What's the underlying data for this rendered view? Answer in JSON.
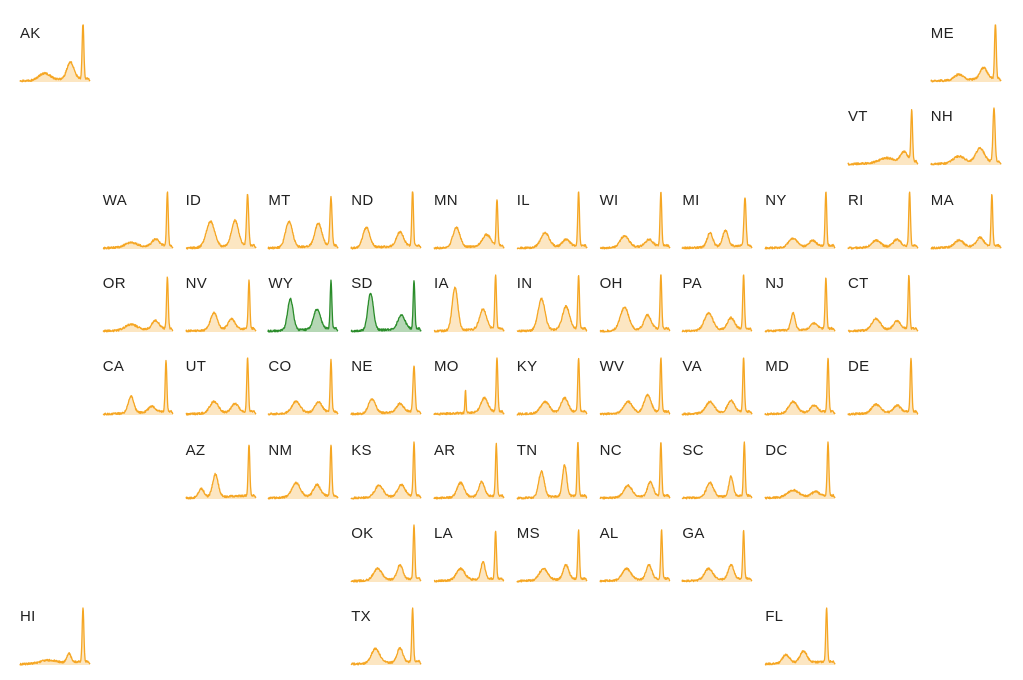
{
  "chart_data": {
    "type": "area",
    "description_of_layout": "tile-grid",
    "colors": {
      "default": "#F5A623",
      "highlight": "#2A8C2A"
    },
    "highlighted_states": [
      "WY",
      "SD"
    ],
    "states": [
      {
        "id": "AK",
        "label": "AK",
        "row": 0,
        "col": 0,
        "peaks": [
          [
            0.35,
            0.12,
            0.08
          ],
          [
            0.72,
            0.3,
            0.05
          ],
          [
            0.9,
            1.0,
            0.012
          ]
        ]
      },
      {
        "id": "ME",
        "label": "ME",
        "row": 0,
        "col": 11,
        "peaks": [
          [
            0.4,
            0.1,
            0.06
          ],
          [
            0.75,
            0.2,
            0.05
          ],
          [
            0.92,
            1.0,
            0.012
          ]
        ]
      },
      {
        "id": "VT",
        "label": "VT",
        "row": 1,
        "col": 10,
        "peaks": [
          [
            0.55,
            0.08,
            0.1
          ],
          [
            0.8,
            0.18,
            0.05
          ],
          [
            0.91,
            0.9,
            0.012
          ]
        ]
      },
      {
        "id": "NH",
        "label": "NH",
        "row": 1,
        "col": 11,
        "peaks": [
          [
            0.4,
            0.12,
            0.08
          ],
          [
            0.7,
            0.25,
            0.06
          ],
          [
            0.9,
            0.95,
            0.015
          ]
        ]
      },
      {
        "id": "WA",
        "label": "WA",
        "row": 2,
        "col": 1,
        "peaks": [
          [
            0.4,
            0.08,
            0.08
          ],
          [
            0.75,
            0.12,
            0.05
          ],
          [
            0.92,
            0.95,
            0.012
          ]
        ]
      },
      {
        "id": "ID",
        "label": "ID",
        "row": 2,
        "col": 2,
        "peaks": [
          [
            0.35,
            0.45,
            0.06
          ],
          [
            0.7,
            0.45,
            0.05
          ],
          [
            0.88,
            0.9,
            0.015
          ]
        ]
      },
      {
        "id": "MT",
        "label": "MT",
        "row": 2,
        "col": 3,
        "peaks": [
          [
            0.3,
            0.45,
            0.05
          ],
          [
            0.72,
            0.4,
            0.05
          ],
          [
            0.9,
            0.85,
            0.015
          ]
        ]
      },
      {
        "id": "ND",
        "label": "ND",
        "row": 2,
        "col": 4,
        "peaks": [
          [
            0.22,
            0.35,
            0.05
          ],
          [
            0.7,
            0.25,
            0.05
          ],
          [
            0.88,
            1.0,
            0.012
          ]
        ]
      },
      {
        "id": "MN",
        "label": "MN",
        "row": 2,
        "col": 5,
        "peaks": [
          [
            0.32,
            0.35,
            0.05
          ],
          [
            0.75,
            0.2,
            0.06
          ],
          [
            0.9,
            0.8,
            0.012
          ]
        ]
      },
      {
        "id": "IL",
        "label": "IL",
        "row": 2,
        "col": 6,
        "peaks": [
          [
            0.4,
            0.25,
            0.06
          ],
          [
            0.7,
            0.12,
            0.05
          ],
          [
            0.88,
            0.95,
            0.012
          ]
        ]
      },
      {
        "id": "WI",
        "label": "WI",
        "row": 2,
        "col": 7,
        "peaks": [
          [
            0.35,
            0.2,
            0.06
          ],
          [
            0.7,
            0.12,
            0.05
          ],
          [
            0.87,
            0.95,
            0.012
          ]
        ]
      },
      {
        "id": "MI",
        "label": "MI",
        "row": 2,
        "col": 8,
        "peaks": [
          [
            0.4,
            0.25,
            0.04
          ],
          [
            0.62,
            0.28,
            0.04
          ],
          [
            0.9,
            0.85,
            0.015
          ]
        ]
      },
      {
        "id": "NY",
        "label": "NY",
        "row": 2,
        "col": 9,
        "peaks": [
          [
            0.4,
            0.15,
            0.06
          ],
          [
            0.68,
            0.1,
            0.05
          ],
          [
            0.87,
            0.95,
            0.012
          ]
        ]
      },
      {
        "id": "RI",
        "label": "RI",
        "row": 2,
        "col": 10,
        "peaks": [
          [
            0.4,
            0.12,
            0.06
          ],
          [
            0.7,
            0.12,
            0.05
          ],
          [
            0.88,
            0.95,
            0.012
          ]
        ]
      },
      {
        "id": "MA",
        "label": "MA",
        "row": 2,
        "col": 11,
        "peaks": [
          [
            0.4,
            0.12,
            0.06
          ],
          [
            0.7,
            0.15,
            0.05
          ],
          [
            0.87,
            0.9,
            0.012
          ]
        ]
      },
      {
        "id": "OR",
        "label": "OR",
        "row": 3,
        "col": 1,
        "peaks": [
          [
            0.4,
            0.1,
            0.08
          ],
          [
            0.75,
            0.15,
            0.05
          ],
          [
            0.92,
            0.9,
            0.012
          ]
        ]
      },
      {
        "id": "NV",
        "label": "NV",
        "row": 3,
        "col": 2,
        "peaks": [
          [
            0.4,
            0.3,
            0.05
          ],
          [
            0.65,
            0.18,
            0.05
          ],
          [
            0.9,
            0.85,
            0.012
          ]
        ]
      },
      {
        "id": "WY",
        "label": "WY",
        "row": 3,
        "col": 3,
        "peaks": [
          [
            0.32,
            0.55,
            0.04
          ],
          [
            0.7,
            0.35,
            0.05
          ],
          [
            0.9,
            0.85,
            0.012
          ]
        ]
      },
      {
        "id": "SD",
        "label": "SD",
        "row": 3,
        "col": 4,
        "peaks": [
          [
            0.28,
            0.65,
            0.04
          ],
          [
            0.72,
            0.25,
            0.05
          ],
          [
            0.9,
            0.85,
            0.012
          ]
        ]
      },
      {
        "id": "IA",
        "label": "IA",
        "row": 3,
        "col": 5,
        "peaks": [
          [
            0.3,
            0.75,
            0.04
          ],
          [
            0.7,
            0.35,
            0.05
          ],
          [
            0.88,
            0.95,
            0.012
          ]
        ]
      },
      {
        "id": "IN",
        "label": "IN",
        "row": 3,
        "col": 6,
        "peaks": [
          [
            0.35,
            0.55,
            0.05
          ],
          [
            0.7,
            0.4,
            0.05
          ],
          [
            0.88,
            0.95,
            0.012
          ]
        ]
      },
      {
        "id": "OH",
        "label": "OH",
        "row": 3,
        "col": 7,
        "peaks": [
          [
            0.35,
            0.4,
            0.06
          ],
          [
            0.68,
            0.25,
            0.05
          ],
          [
            0.87,
            0.95,
            0.012
          ]
        ]
      },
      {
        "id": "PA",
        "label": "PA",
        "row": 3,
        "col": 8,
        "peaks": [
          [
            0.38,
            0.3,
            0.06
          ],
          [
            0.7,
            0.2,
            0.05
          ],
          [
            0.88,
            0.95,
            0.012
          ]
        ]
      },
      {
        "id": "NJ",
        "label": "NJ",
        "row": 3,
        "col": 9,
        "peaks": [
          [
            0.4,
            0.3,
            0.03
          ],
          [
            0.7,
            0.1,
            0.05
          ],
          [
            0.87,
            0.9,
            0.012
          ]
        ]
      },
      {
        "id": "CT",
        "label": "CT",
        "row": 3,
        "col": 10,
        "peaks": [
          [
            0.4,
            0.2,
            0.06
          ],
          [
            0.7,
            0.15,
            0.05
          ],
          [
            0.87,
            0.95,
            0.012
          ]
        ]
      },
      {
        "id": "CA",
        "label": "CA",
        "row": 4,
        "col": 1,
        "peaks": [
          [
            0.4,
            0.3,
            0.04
          ],
          [
            0.7,
            0.1,
            0.05
          ],
          [
            0.9,
            0.9,
            0.012
          ]
        ]
      },
      {
        "id": "UT",
        "label": "UT",
        "row": 4,
        "col": 2,
        "peaks": [
          [
            0.4,
            0.2,
            0.06
          ],
          [
            0.7,
            0.15,
            0.05
          ],
          [
            0.88,
            0.95,
            0.012
          ]
        ]
      },
      {
        "id": "CO",
        "label": "CO",
        "row": 4,
        "col": 3,
        "peaks": [
          [
            0.4,
            0.2,
            0.06
          ],
          [
            0.72,
            0.18,
            0.05
          ],
          [
            0.9,
            0.9,
            0.012
          ]
        ]
      },
      {
        "id": "NE",
        "label": "NE",
        "row": 4,
        "col": 4,
        "peaks": [
          [
            0.3,
            0.25,
            0.05
          ],
          [
            0.7,
            0.15,
            0.05
          ],
          [
            0.9,
            0.8,
            0.015
          ]
        ]
      },
      {
        "id": "MO",
        "label": "MO",
        "row": 4,
        "col": 5,
        "peaks": [
          [
            0.45,
            0.4,
            0.008
          ],
          [
            0.72,
            0.25,
            0.05
          ],
          [
            0.9,
            0.95,
            0.012
          ]
        ]
      },
      {
        "id": "KY",
        "label": "KY",
        "row": 4,
        "col": 6,
        "peaks": [
          [
            0.4,
            0.2,
            0.06
          ],
          [
            0.68,
            0.25,
            0.05
          ],
          [
            0.88,
            0.95,
            0.012
          ]
        ]
      },
      {
        "id": "WV",
        "label": "WV",
        "row": 4,
        "col": 7,
        "peaks": [
          [
            0.4,
            0.2,
            0.06
          ],
          [
            0.68,
            0.3,
            0.05
          ],
          [
            0.87,
            0.95,
            0.012
          ]
        ]
      },
      {
        "id": "VA",
        "label": "VA",
        "row": 4,
        "col": 8,
        "peaks": [
          [
            0.4,
            0.2,
            0.06
          ],
          [
            0.7,
            0.2,
            0.05
          ],
          [
            0.88,
            0.95,
            0.012
          ]
        ]
      },
      {
        "id": "MD",
        "label": "MD",
        "row": 4,
        "col": 9,
        "peaks": [
          [
            0.4,
            0.2,
            0.06
          ],
          [
            0.7,
            0.12,
            0.05
          ],
          [
            0.9,
            0.95,
            0.012
          ]
        ]
      },
      {
        "id": "DE",
        "label": "DE",
        "row": 4,
        "col": 10,
        "peaks": [
          [
            0.4,
            0.15,
            0.06
          ],
          [
            0.7,
            0.12,
            0.05
          ],
          [
            0.9,
            0.95,
            0.012
          ]
        ]
      },
      {
        "id": "AZ",
        "label": "AZ",
        "row": 5,
        "col": 2,
        "peaks": [
          [
            0.22,
            0.15,
            0.04
          ],
          [
            0.42,
            0.4,
            0.04
          ],
          [
            0.9,
            0.9,
            0.012
          ]
        ]
      },
      {
        "id": "NM",
        "label": "NM",
        "row": 5,
        "col": 3,
        "peaks": [
          [
            0.4,
            0.25,
            0.06
          ],
          [
            0.7,
            0.2,
            0.05
          ],
          [
            0.9,
            0.9,
            0.012
          ]
        ]
      },
      {
        "id": "KS",
        "label": "KS",
        "row": 5,
        "col": 4,
        "peaks": [
          [
            0.4,
            0.2,
            0.06
          ],
          [
            0.72,
            0.2,
            0.05
          ],
          [
            0.9,
            0.95,
            0.012
          ]
        ]
      },
      {
        "id": "AR",
        "label": "AR",
        "row": 5,
        "col": 5,
        "peaks": [
          [
            0.38,
            0.25,
            0.05
          ],
          [
            0.68,
            0.25,
            0.04
          ],
          [
            0.89,
            0.9,
            0.012
          ]
        ]
      },
      {
        "id": "TN",
        "label": "TN",
        "row": 5,
        "col": 6,
        "peaks": [
          [
            0.35,
            0.45,
            0.04
          ],
          [
            0.68,
            0.55,
            0.03
          ],
          [
            0.87,
            0.95,
            0.012
          ]
        ]
      },
      {
        "id": "NC",
        "label": "NC",
        "row": 5,
        "col": 7,
        "peaks": [
          [
            0.4,
            0.2,
            0.06
          ],
          [
            0.72,
            0.25,
            0.04
          ],
          [
            0.87,
            0.95,
            0.012
          ]
        ]
      },
      {
        "id": "SC",
        "label": "SC",
        "row": 5,
        "col": 8,
        "peaks": [
          [
            0.4,
            0.25,
            0.05
          ],
          [
            0.7,
            0.35,
            0.03
          ],
          [
            0.89,
            0.95,
            0.012
          ]
        ]
      },
      {
        "id": "DC",
        "label": "DC",
        "row": 5,
        "col": 9,
        "peaks": [
          [
            0.4,
            0.12,
            0.08
          ],
          [
            0.72,
            0.08,
            0.05
          ],
          [
            0.9,
            0.95,
            0.012
          ]
        ]
      },
      {
        "id": "OK",
        "label": "OK",
        "row": 6,
        "col": 4,
        "peaks": [
          [
            0.38,
            0.2,
            0.06
          ],
          [
            0.7,
            0.25,
            0.04
          ],
          [
            0.9,
            0.95,
            0.012
          ]
        ]
      },
      {
        "id": "LA",
        "label": "LA",
        "row": 6,
        "col": 5,
        "peaks": [
          [
            0.38,
            0.2,
            0.06
          ],
          [
            0.7,
            0.3,
            0.03
          ],
          [
            0.88,
            0.85,
            0.012
          ]
        ]
      },
      {
        "id": "MS",
        "label": "MS",
        "row": 6,
        "col": 6,
        "peaks": [
          [
            0.38,
            0.2,
            0.06
          ],
          [
            0.7,
            0.25,
            0.04
          ],
          [
            0.88,
            0.85,
            0.012
          ]
        ]
      },
      {
        "id": "AL",
        "label": "AL",
        "row": 6,
        "col": 7,
        "peaks": [
          [
            0.38,
            0.2,
            0.06
          ],
          [
            0.7,
            0.25,
            0.04
          ],
          [
            0.88,
            0.85,
            0.012
          ]
        ]
      },
      {
        "id": "GA",
        "label": "GA",
        "row": 6,
        "col": 8,
        "peaks": [
          [
            0.38,
            0.2,
            0.06
          ],
          [
            0.7,
            0.25,
            0.04
          ],
          [
            0.88,
            0.85,
            0.012
          ]
        ]
      },
      {
        "id": "HI",
        "label": "HI",
        "row": 7,
        "col": 0,
        "peaks": [
          [
            0.4,
            0.05,
            0.1
          ],
          [
            0.7,
            0.15,
            0.03
          ],
          [
            0.9,
            0.95,
            0.012
          ]
        ]
      },
      {
        "id": "TX",
        "label": "TX",
        "row": 7,
        "col": 4,
        "peaks": [
          [
            0.35,
            0.25,
            0.06
          ],
          [
            0.7,
            0.25,
            0.04
          ],
          [
            0.88,
            0.95,
            0.012
          ]
        ]
      },
      {
        "id": "FL",
        "label": "FL",
        "row": 7,
        "col": 9,
        "peaks": [
          [
            0.3,
            0.15,
            0.05
          ],
          [
            0.55,
            0.2,
            0.05
          ],
          [
            0.88,
            0.95,
            0.012
          ]
        ]
      }
    ]
  }
}
